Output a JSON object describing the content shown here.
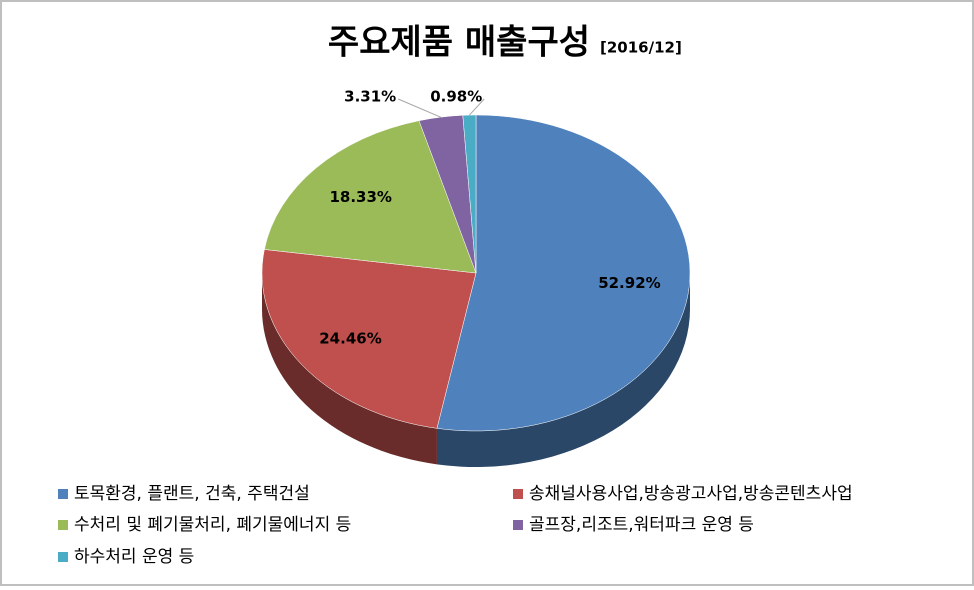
{
  "chart_data": {
    "type": "pie3d",
    "title": "주요제품 매출구성",
    "subtitle": "[2016/12]",
    "categories": [
      "토목환경, 플랜트, 건축, 주택건설",
      "송채널사용사업,방송광고사업,방송콘텐츠사업",
      "수처리 및 폐기물처리, 폐기물에너지 등",
      "골프장,리조트,워터파크 운영 등",
      "하수처리 운영 등"
    ],
    "values": [
      52.92,
      24.46,
      18.33,
      3.31,
      0.98
    ],
    "value_labels": [
      "52.92%",
      "24.46%",
      "18.33%",
      "3.31%",
      "0.98%"
    ],
    "colors": [
      "#4f81bd",
      "#c0504d",
      "#9bbb59",
      "#8064a2",
      "#4bacc6"
    ],
    "legend": "bottom"
  }
}
